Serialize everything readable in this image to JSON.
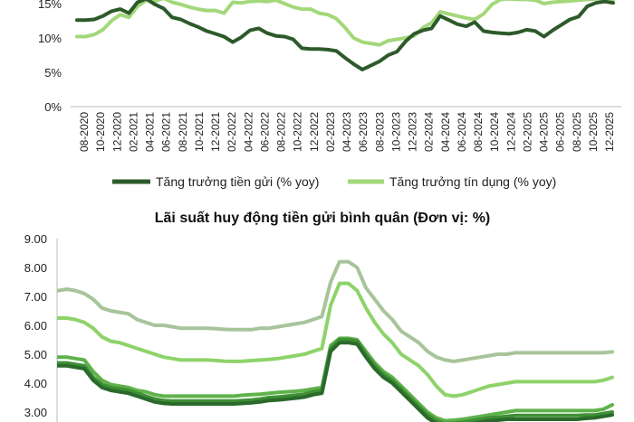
{
  "charts": [
    {
      "type": "line",
      "title": "",
      "ylim": [
        0,
        15
      ],
      "y_ticks": [
        "15%",
        "10%",
        "5%",
        "0%"
      ],
      "y_tick_values": [
        15,
        10,
        5,
        0
      ],
      "x_tick_labels": [
        "08-2020",
        "10-2020",
        "12-2020",
        "02-2021",
        "04-2021",
        "06-2021",
        "08-2021",
        "10-2021",
        "12-2021",
        "02-2022",
        "04-2022",
        "06-2022",
        "08-2022",
        "10-2022",
        "12-2022",
        "02-2023",
        "04-2023",
        "06-2023",
        "08-2023",
        "10-2023",
        "12-2023",
        "02-2024",
        "04-2024",
        "06-2024",
        "08-2024",
        "10-2024",
        "12-2024",
        "02-2025",
        "04-2025",
        "06-2025",
        "08-2025",
        "10-2025",
        "12-2025"
      ],
      "legend": [
        "Tăng trưởng tiền gửi (% yoy)",
        "Tăng trưởng tín dụng (% yoy)"
      ],
      "colors": [
        "#2d5a2a",
        "#a3d87a"
      ],
      "series": [
        {
          "name": "Tăng trưởng tiền gửi (% yoy)",
          "values": [
            12.6,
            12.6,
            12.7,
            13.2,
            13.9,
            14.2,
            13.6,
            15.2,
            15.7,
            14.9,
            14.3,
            13.0,
            12.7,
            12.1,
            11.6,
            11.0,
            10.6,
            10.2,
            9.4,
            10.1,
            11.1,
            11.4,
            10.7,
            10.3,
            10.2,
            9.8,
            8.5,
            8.4,
            8.4,
            8.3,
            8.1,
            7.1,
            6.2,
            5.4,
            6.0,
            6.6,
            7.5,
            8.0,
            9.5,
            10.6,
            11.1,
            11.4,
            13.2,
            12.6,
            12.0,
            11.7,
            12.3,
            11.0,
            10.8,
            10.7,
            10.6,
            10.8,
            11.2,
            11.0,
            10.2,
            11.1,
            11.9,
            12.7,
            13.1,
            14.6,
            15.1,
            15.3,
            15.1
          ]
        },
        {
          "name": "Tăng trưởng tín dụng (% yoy)",
          "values": [
            10.2,
            10.2,
            10.5,
            11.2,
            12.5,
            13.4,
            13.0,
            14.6,
            15.5,
            15.3,
            15.8,
            15.2,
            14.9,
            14.5,
            14.2,
            14.0,
            14.0,
            13.6,
            15.2,
            15.1,
            15.3,
            15.4,
            15.3,
            15.5,
            15.0,
            14.5,
            14.2,
            14.2,
            13.6,
            13.4,
            12.8,
            11.5,
            10.0,
            9.4,
            9.2,
            9.0,
            9.6,
            9.8,
            10.0,
            10.3,
            11.5,
            12.2,
            13.8,
            13.5,
            13.2,
            12.9,
            12.7,
            13.5,
            14.9,
            15.6,
            15.7,
            15.6,
            15.6,
            15.5,
            15.0,
            15.2,
            15.3,
            15.4,
            15.5,
            15.6,
            15.7,
            15.7,
            15.6
          ]
        }
      ]
    },
    {
      "type": "line",
      "title": "Lãi suất huy động tiền gửi bình quân (Đơn vị: %)",
      "ylim": [
        3,
        9
      ],
      "y_ticks": [
        "9.00",
        "8.00",
        "7.00",
        "6.00",
        "5.00",
        "4.00",
        "3.00"
      ],
      "y_tick_values": [
        9,
        8,
        7,
        6,
        5,
        4,
        3
      ],
      "colors": [
        "#a8c49a",
        "#8ed36a",
        "#5fb24a",
        "#3f8f35",
        "#2a6a2a"
      ],
      "series": [
        {
          "name": "",
          "values": [
            7.2,
            7.25,
            7.2,
            7.1,
            6.9,
            6.6,
            6.5,
            6.45,
            6.4,
            6.2,
            6.1,
            6.0,
            6.0,
            5.95,
            5.9,
            5.9,
            5.9,
            5.9,
            5.88,
            5.86,
            5.85,
            5.85,
            5.85,
            5.9,
            5.9,
            5.95,
            6.0,
            6.05,
            6.1,
            6.2,
            6.3,
            7.5,
            8.2,
            8.2,
            8.0,
            7.3,
            6.9,
            6.5,
            6.2,
            5.8,
            5.6,
            5.4,
            5.1,
            4.9,
            4.8,
            4.75,
            4.8,
            4.85,
            4.9,
            4.95,
            5.0,
            5.0,
            5.05,
            5.05,
            5.05,
            5.05,
            5.05,
            5.05,
            5.05,
            5.05,
            5.05,
            5.05,
            5.05,
            5.08
          ]
        },
        {
          "name": "",
          "values": [
            6.25,
            6.25,
            6.2,
            6.1,
            5.9,
            5.6,
            5.45,
            5.4,
            5.3,
            5.2,
            5.1,
            5.0,
            4.9,
            4.85,
            4.8,
            4.8,
            4.8,
            4.8,
            4.78,
            4.76,
            4.75,
            4.76,
            4.78,
            4.8,
            4.82,
            4.85,
            4.9,
            4.95,
            5.0,
            5.1,
            5.2,
            6.7,
            7.45,
            7.45,
            7.2,
            6.6,
            6.1,
            5.7,
            5.4,
            5.0,
            4.8,
            4.6,
            4.3,
            3.9,
            3.6,
            3.55,
            3.6,
            3.7,
            3.8,
            3.9,
            3.95,
            4.0,
            4.05,
            4.05,
            4.05,
            4.05,
            4.05,
            4.05,
            4.05,
            4.05,
            4.05,
            4.05,
            4.1,
            4.2
          ]
        },
        {
          "name": "",
          "values": [
            4.9,
            4.9,
            4.85,
            4.8,
            4.4,
            4.1,
            3.95,
            3.9,
            3.85,
            3.75,
            3.7,
            3.6,
            3.55,
            3.55,
            3.55,
            3.55,
            3.55,
            3.55,
            3.55,
            3.55,
            3.55,
            3.58,
            3.6,
            3.62,
            3.65,
            3.68,
            3.7,
            3.72,
            3.75,
            3.8,
            3.85,
            5.3,
            5.55,
            5.55,
            5.5,
            5.1,
            4.7,
            4.4,
            4.2,
            3.9,
            3.6,
            3.3,
            3.0,
            2.8,
            2.7,
            2.72,
            2.75,
            2.8,
            2.85,
            2.9,
            2.95,
            3.0,
            3.05,
            3.05,
            3.05,
            3.05,
            3.05,
            3.05,
            3.05,
            3.05,
            3.05,
            3.05,
            3.1,
            3.25
          ]
        },
        {
          "name": "",
          "values": [
            4.7,
            4.7,
            4.65,
            4.6,
            4.2,
            3.95,
            3.85,
            3.8,
            3.75,
            3.65,
            3.55,
            3.45,
            3.4,
            3.38,
            3.38,
            3.38,
            3.38,
            3.38,
            3.38,
            3.38,
            3.38,
            3.4,
            3.42,
            3.45,
            3.5,
            3.52,
            3.55,
            3.58,
            3.62,
            3.7,
            3.75,
            5.2,
            5.5,
            5.5,
            5.45,
            5.0,
            4.6,
            4.3,
            4.1,
            3.8,
            3.5,
            3.2,
            2.9,
            2.7,
            2.6,
            2.62,
            2.65,
            2.7,
            2.75,
            2.8,
            2.82,
            2.85,
            2.88,
            2.88,
            2.88,
            2.88,
            2.88,
            2.88,
            2.88,
            2.88,
            2.9,
            2.9,
            2.95,
            3.0
          ]
        },
        {
          "name": "",
          "values": [
            4.6,
            4.6,
            4.55,
            4.5,
            4.1,
            3.85,
            3.75,
            3.7,
            3.65,
            3.55,
            3.45,
            3.35,
            3.3,
            3.28,
            3.28,
            3.28,
            3.28,
            3.28,
            3.28,
            3.28,
            3.28,
            3.3,
            3.32,
            3.35,
            3.4,
            3.42,
            3.45,
            3.48,
            3.52,
            3.6,
            3.65,
            5.1,
            5.4,
            5.4,
            5.35,
            4.9,
            4.5,
            4.2,
            4.0,
            3.7,
            3.4,
            3.1,
            2.8,
            2.6,
            2.5,
            2.52,
            2.55,
            2.6,
            2.65,
            2.7,
            2.72,
            2.75,
            2.75,
            2.75,
            2.75,
            2.75,
            2.75,
            2.75,
            2.75,
            2.75,
            2.78,
            2.8,
            2.85,
            2.9
          ]
        }
      ]
    }
  ]
}
